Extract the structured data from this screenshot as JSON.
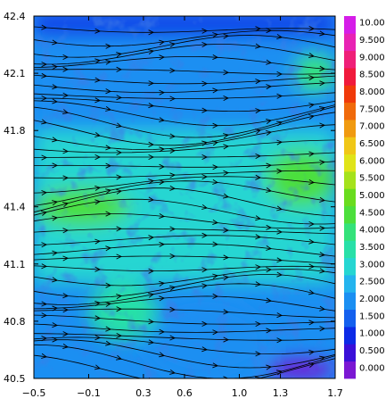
{
  "chart_data": {
    "type": "heatmap",
    "title": "",
    "xlabel": "",
    "ylabel": "",
    "xlim": [
      -0.5,
      1.7
    ],
    "ylim": [
      40.5,
      42.4
    ],
    "x_ticks": [
      -0.5,
      -0.1,
      0.3,
      0.6,
      1.0,
      1.3,
      1.7
    ],
    "x_tick_labels": [
      "−0.5",
      "−0.1",
      "0.3",
      "0.6",
      "1.0",
      "1.3",
      "1.7"
    ],
    "y_ticks": [
      40.5,
      40.8,
      41.1,
      41.4,
      41.8,
      42.1,
      42.4
    ],
    "y_tick_labels": [
      "40.5",
      "40.8",
      "41.1",
      "41.4",
      "41.8",
      "42.1",
      "42.4"
    ],
    "colorbar": {
      "placement": "right",
      "levels": [
        0.0,
        0.5,
        1.0,
        1.5,
        2.0,
        2.5,
        3.0,
        3.5,
        4.0,
        4.5,
        5.0,
        5.5,
        6.0,
        6.5,
        7.0,
        7.5,
        8.0,
        8.5,
        9.0,
        9.5,
        10.0
      ],
      "labels": [
        "0.000",
        "0.500",
        "1.000",
        "1.500",
        "2.000",
        "2.500",
        "3.000",
        "3.500",
        "4.000",
        "4.500",
        "5.000",
        "5.500",
        "6.000",
        "6.500",
        "7.000",
        "7.500",
        "8.000",
        "8.500",
        "9.000",
        "9.500",
        "10.00"
      ],
      "colors": [
        "#7b17d3",
        "#3a0fd8",
        "#0c2ae6",
        "#1460ee",
        "#1b8ff2",
        "#24b4ee",
        "#26d6d2",
        "#28e0a8",
        "#34e27a",
        "#4cdf3c",
        "#69dc1e",
        "#a5e21c",
        "#e0e419",
        "#f0c717",
        "#f09a10",
        "#f06a0b",
        "#f03a0a",
        "#f01a3c",
        "#ef1f78",
        "#e822b4",
        "#d51de8"
      ]
    },
    "field_description_regions": [
      {
        "x": [
          -0.5,
          0.2
        ],
        "y": [
          41.3,
          41.5
        ],
        "value": 4.5
      },
      {
        "x": [
          1.2,
          1.7
        ],
        "y": [
          41.4,
          41.7
        ],
        "value": 4.7
      },
      {
        "x": [
          1.4,
          1.7
        ],
        "y": [
          42.0,
          42.2
        ],
        "value": 4.0
      },
      {
        "x": [
          -0.1,
          0.4
        ],
        "y": [
          40.7,
          41.0
        ],
        "value": 3.8
      },
      {
        "x": [
          -0.5,
          1.7
        ],
        "y": [
          41.0,
          41.8
        ],
        "value": 3.0
      },
      {
        "x": [
          -0.5,
          1.7
        ],
        "y": [
          41.8,
          42.3
        ],
        "value": 2.0
      },
      {
        "x": [
          0.3,
          1.2
        ],
        "y": [
          40.5,
          40.9
        ],
        "value": 2.3
      },
      {
        "x": [
          -0.5,
          1.7
        ],
        "y": [
          42.3,
          42.4
        ],
        "value": 1.0
      },
      {
        "x": [
          1.2,
          1.7
        ],
        "y": [
          40.5,
          40.6
        ],
        "value": 0.2
      }
    ],
    "streamlines": {
      "direction": "west-to-east",
      "count": 40
    }
  }
}
